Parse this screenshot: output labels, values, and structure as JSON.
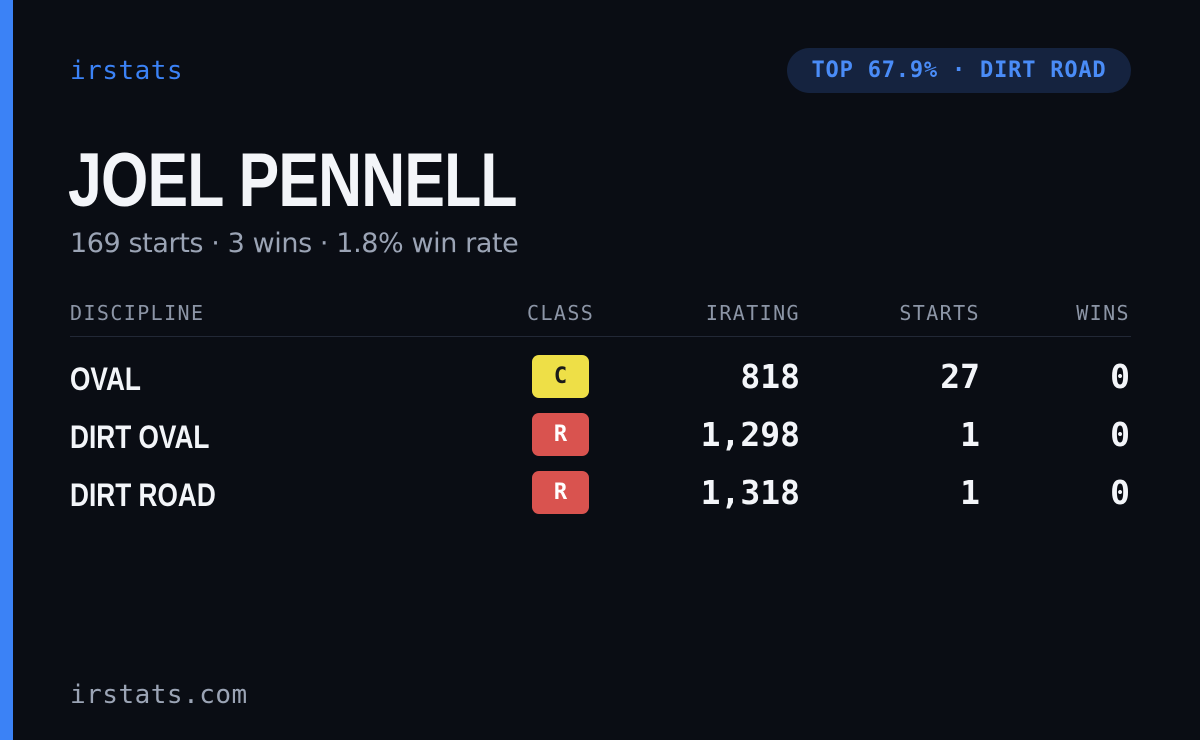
{
  "brand": "irstats",
  "rank_badge": "TOP 67.9% · DIRT ROAD",
  "driver": {
    "name": "JOEL PENNELL",
    "summary": "169 starts · 3 wins · 1.8% win rate"
  },
  "table": {
    "headers": {
      "discipline": "DISCIPLINE",
      "class": "CLASS",
      "irating": "IRATING",
      "starts": "STARTS",
      "wins": "WINS"
    },
    "rows": [
      {
        "discipline": "OVAL",
        "class": "C",
        "class_bg": "#eedf47",
        "class_fg": "#1a1a1a",
        "irating": "818",
        "starts": "27",
        "wins": "0"
      },
      {
        "discipline": "DIRT OVAL",
        "class": "R",
        "class_bg": "#d9534f",
        "class_fg": "#ffffff",
        "irating": "1,298",
        "starts": "1",
        "wins": "0"
      },
      {
        "discipline": "DIRT ROAD",
        "class": "R",
        "class_bg": "#d9534f",
        "class_fg": "#ffffff",
        "irating": "1,318",
        "starts": "1",
        "wins": "0"
      }
    ]
  },
  "footer": "irstats.com",
  "colors": {
    "accent": "#3b82f6",
    "background": "#0a0d14"
  }
}
